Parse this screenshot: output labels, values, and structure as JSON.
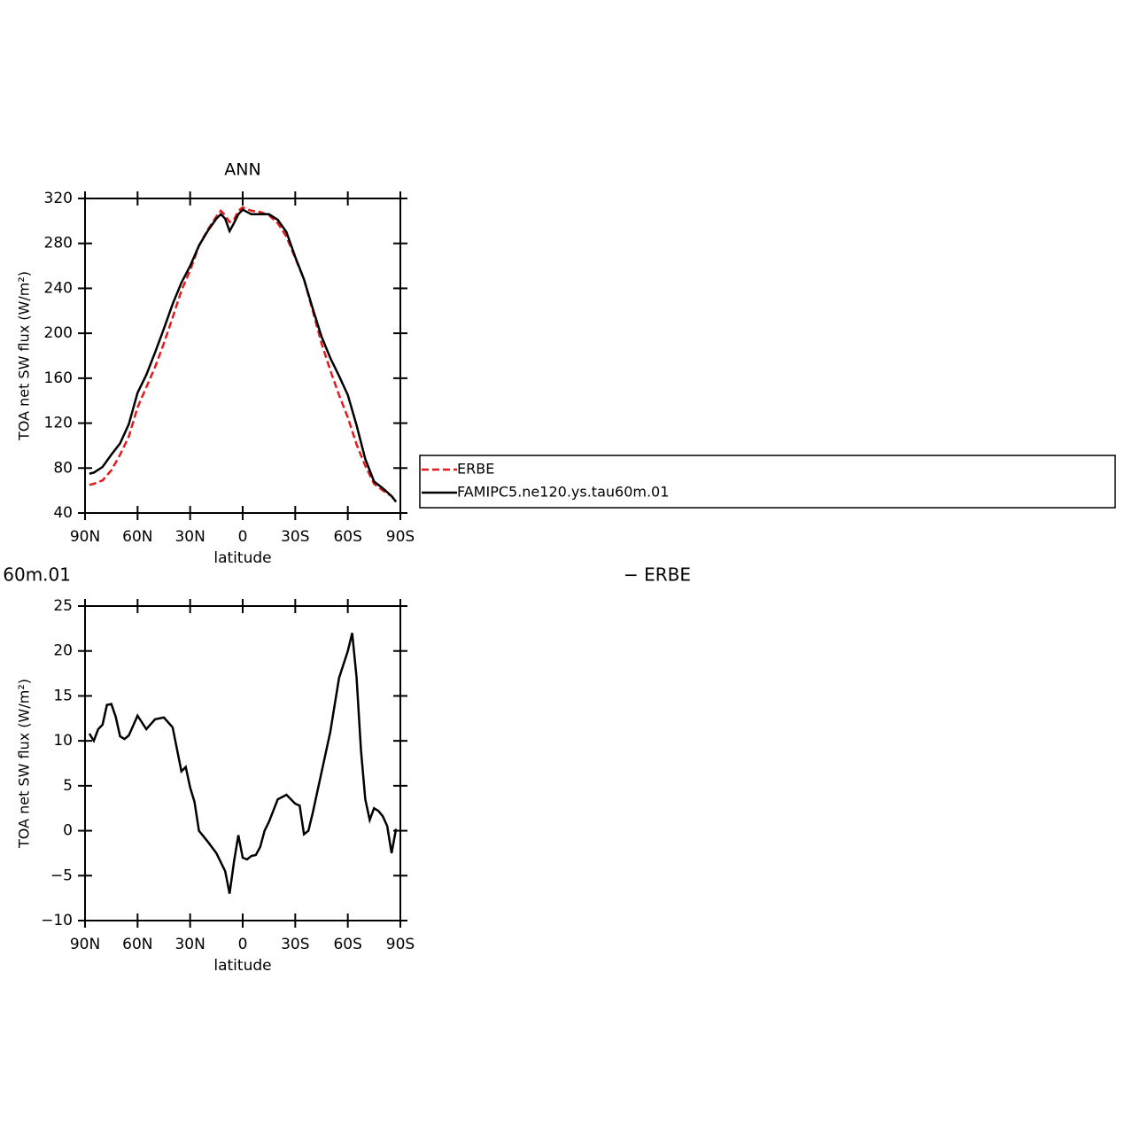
{
  "chart_data": [
    {
      "type": "line",
      "title": "ANN",
      "xlabel": "latitude",
      "ylabel": "TOA net SW flux (W/m²)",
      "x": [
        87.5,
        85,
        80,
        75,
        70,
        65,
        60,
        55,
        50,
        45,
        40,
        35,
        30,
        25,
        20,
        15,
        12.5,
        10,
        7.5,
        5,
        2.5,
        0,
        -5,
        -10,
        -15,
        -20,
        -25,
        -30,
        -35,
        -40,
        -45,
        -50,
        -55,
        -60,
        -65,
        -70,
        -75,
        -80,
        -85,
        -87.5
      ],
      "series": [
        {
          "name": "ERBE",
          "color": "#e41a1c",
          "dash": true,
          "values": [
            65,
            66,
            69,
            78,
            92,
            108,
            134,
            152,
            170,
            191,
            214,
            238,
            256,
            278,
            292,
            304,
            309,
            305,
            299,
            301,
            309,
            312,
            309,
            308,
            305,
            298,
            286,
            267,
            248,
            220,
            191,
            167,
            145,
            125,
            101,
            82,
            66,
            60,
            55,
            50
          ]
        },
        {
          "name": "FAMIPC5.ne120.ys.tau60m.01",
          "color": "#000000",
          "dash": false,
          "values": [
            75,
            76,
            81,
            92,
            102,
            119,
            147,
            163,
            183,
            204,
            226,
            245,
            260,
            278,
            291,
            302,
            306,
            302,
            291,
            298,
            306,
            310,
            306,
            306,
            306,
            301,
            290,
            268,
            248,
            222,
            197,
            178,
            162,
            145,
            118,
            88,
            68,
            62,
            55,
            50
          ]
        }
      ],
      "xlim": [
        90,
        -90
      ],
      "xticks": [
        {
          "value": 90,
          "label": "90N"
        },
        {
          "value": 60,
          "label": "60N"
        },
        {
          "value": 30,
          "label": "30N"
        },
        0,
        {
          "value": -30,
          "label": "30S"
        },
        {
          "value": -60,
          "label": "60S"
        },
        {
          "value": -90,
          "label": "90S"
        }
      ],
      "ylim": [
        40,
        320
      ],
      "yticks": [
        40,
        80,
        120,
        160,
        200,
        240,
        280,
        320
      ],
      "legend": "right"
    },
    {
      "type": "line",
      "title_fragments": [
        "60m.01",
        "− ERBE"
      ],
      "xlabel": "latitude",
      "ylabel": "TOA net SW flux (W/m²)",
      "x": [
        87.5,
        85,
        82.5,
        80,
        77.5,
        75,
        72.5,
        70,
        67.5,
        65,
        60,
        55,
        50,
        45,
        40,
        35,
        32.5,
        30,
        27.5,
        25,
        20,
        15,
        10,
        7.5,
        5,
        2.5,
        0,
        -2.5,
        -5,
        -7.5,
        -10,
        -12.5,
        -15,
        -20,
        -25,
        -30,
        -32.5,
        -35,
        -37.5,
        -40,
        -45,
        -50,
        -55,
        -60,
        -62.5,
        -65,
        -67.5,
        -70,
        -72.5,
        -75,
        -77.5,
        -80,
        -82.5,
        -85,
        -87.5
      ],
      "series": [
        {
          "name": "FAMIPC5.ne120.ys.tau60m.01",
          "color": "#000000",
          "dash": false,
          "values": [
            10.8,
            10,
            11.3,
            11.8,
            14,
            14.1,
            12.7,
            10.5,
            10.2,
            10.6,
            12.8,
            11.3,
            12.4,
            12.6,
            11.5,
            6.6,
            7.1,
            4.8,
            3.2,
            0,
            -1.2,
            -2.5,
            -4.5,
            -7,
            -3.5,
            -0.5,
            -3,
            -3.2,
            -2.8,
            -2.7,
            -1.8,
            0,
            1,
            3.5,
            4,
            3,
            2.8,
            -0.4,
            0,
            2,
            6.5,
            11,
            17,
            20,
            22,
            17,
            9,
            3.5,
            1.2,
            2.5,
            2.2,
            1.6,
            0.5,
            -2.5,
            0.2
          ]
        }
      ],
      "xlim": [
        90,
        -90
      ],
      "xticks": [
        {
          "value": 90,
          "label": "90N"
        },
        {
          "value": 60,
          "label": "60N"
        },
        {
          "value": 30,
          "label": "30N"
        },
        0,
        {
          "value": -30,
          "label": "30S"
        },
        {
          "value": -60,
          "label": "60S"
        },
        {
          "value": -90,
          "label": "90S"
        }
      ],
      "ylim": [
        -10,
        25
      ],
      "yticks": [
        {
          "value": -10,
          "label": "−10"
        },
        {
          "value": -5,
          "label": "−5"
        },
        0,
        5,
        10,
        15,
        20,
        25
      ]
    }
  ]
}
